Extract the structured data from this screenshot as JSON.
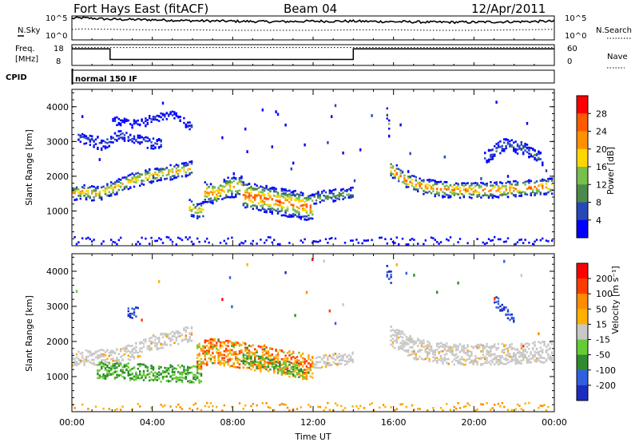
{
  "header": {
    "station": "Fort Hays East (fitACF)",
    "beam": "Beam 04",
    "date": "12/Apr/2011"
  },
  "top_panels": {
    "nsky_label": "N.Sky",
    "nsky_ticks": [
      "10^5",
      "10^0"
    ],
    "nsearch_label": "N.Search",
    "nsearch_ticks": [
      "10^5",
      "10^0"
    ],
    "freq_label": "Freq.",
    "freq_unit": "[MHz]",
    "freq_ticks": [
      "18",
      "8"
    ],
    "nave_label": "Nave",
    "nave_ticks": [
      "60",
      "0"
    ],
    "cpid_label": "CPID",
    "cpid_value": "normal 150 IF"
  },
  "chart_data": [
    {
      "type": "line",
      "panel": "noise",
      "xlim": [
        0,
        24
      ],
      "series": [
        {
          "name": "N.Sky",
          "style": "solid",
          "x": [
            0,
            0.5,
            2,
            4,
            6,
            8,
            10,
            12,
            14,
            16,
            18,
            20,
            22,
            24
          ],
          "values": [
            4.5,
            4.6,
            4.3,
            4.2,
            4.0,
            3.9,
            3.8,
            3.9,
            3.9,
            3.8,
            3.7,
            3.7,
            3.8,
            3.9
          ]
        },
        {
          "name": "N.Search",
          "style": "dotted",
          "x": [
            0,
            0.5,
            2,
            4,
            6,
            8,
            10,
            12,
            14,
            16,
            18,
            20,
            22,
            24
          ],
          "values": [
            2.2,
            2.3,
            2.2,
            2.1,
            2.1,
            2.0,
            2.0,
            2.0,
            2.1,
            2.1,
            2.0,
            2.0,
            2.1,
            2.2
          ]
        }
      ]
    },
    {
      "type": "line",
      "panel": "frequency",
      "xlim": [
        0,
        24
      ],
      "series": [
        {
          "name": "Freq.",
          "style": "solid",
          "x": [
            0,
            1.9,
            1.9,
            14.0,
            14.0,
            24
          ],
          "values": [
            16.5,
            16.5,
            10.5,
            10.5,
            16.5,
            16.5
          ]
        },
        {
          "name": "Nave",
          "style": "dotted",
          "x": [
            0,
            24
          ],
          "values": [
            56,
            56
          ]
        }
      ]
    },
    {
      "type": "heatmap",
      "panel": "power",
      "xlabel": "Time UT",
      "ylabel": "Slant Range [km]",
      "xlim": [
        0,
        24
      ],
      "ylim": [
        0,
        4500
      ],
      "x_ticks": [
        "00:00",
        "04:00",
        "08:00",
        "12:00",
        "16:00",
        "20:00",
        "00:00"
      ],
      "y_ticks": [
        1000,
        2000,
        3000,
        4000
      ],
      "colorbar": {
        "label": "Power [dB]",
        "ticks": [
          "4",
          "8",
          "12",
          "16",
          "20",
          "24",
          "28"
        ],
        "colors": [
          "#0000ff",
          "#2848b8",
          "#4c8a4c",
          "#77c04b",
          "#ffd700",
          "#ff9000",
          "#ff5a00",
          "#ff0000"
        ]
      },
      "bands": [
        {
          "t": [
            0.0,
            0.6,
            1.2,
            2.0,
            3.0,
            4.0,
            5.0,
            6.0
          ],
          "r": [
            1500,
            1560,
            1480,
            1640,
            1880,
            2020,
            2120,
            2220
          ],
          "w": 210,
          "core": 21
        },
        {
          "t": [
            0.3,
            1.5,
            2.5,
            3.5,
            4.5
          ],
          "r": [
            3150,
            2900,
            3200,
            3000,
            2900
          ],
          "w": 160,
          "core": 6
        },
        {
          "t": [
            2.0,
            3.0,
            4.0,
            5.0,
            6.0
          ],
          "r": [
            3620,
            3500,
            3650,
            3800,
            3400
          ],
          "w": 120,
          "core": 4
        },
        {
          "t": [
            5.8,
            6.2,
            6.6
          ],
          "r": [
            1120,
            1000,
            1050
          ],
          "w": 230,
          "core": 19
        },
        {
          "t": [
            6.6,
            7.2,
            7.8,
            8.5
          ],
          "r": [
            1550,
            1500,
            1680,
            1720
          ],
          "w": 300,
          "core": 23
        },
        {
          "t": [
            8.5,
            9.5,
            10.5,
            11.5,
            12.0
          ],
          "r": [
            1480,
            1350,
            1250,
            1150,
            1100
          ],
          "w": 390,
          "core": 27
        },
        {
          "t": [
            12.0,
            13.0,
            14.0
          ],
          "r": [
            1350,
            1450,
            1500
          ],
          "w": 180,
          "core": 12
        },
        {
          "t": [
            15.8,
            16.6,
            17.5,
            18.5,
            19.5,
            20.5,
            21.5,
            22.5,
            23.5,
            24.0
          ],
          "r": [
            2250,
            1880,
            1700,
            1620,
            1600,
            1600,
            1610,
            1650,
            1700,
            1720
          ],
          "w": 230,
          "core": 25
        },
        {
          "t": [
            20.5,
            21.5,
            22.5,
            23.5
          ],
          "r": [
            2500,
            2900,
            2800,
            2450
          ],
          "w": 180,
          "core": 8
        },
        {
          "t": [
            15.6,
            15.7,
            15.8
          ],
          "r": [
            4150,
            3750,
            3450
          ],
          "w": 150,
          "core": 14
        }
      ]
    },
    {
      "type": "heatmap",
      "panel": "velocity",
      "xlabel": "Time UT",
      "ylabel": "Slant Range [km]",
      "xlim": [
        0,
        24
      ],
      "ylim": [
        0,
        4500
      ],
      "x_ticks": [
        "00:00",
        "04:00",
        "08:00",
        "12:00",
        "16:00",
        "20:00",
        "00:00"
      ],
      "y_ticks": [
        1000,
        2000,
        3000,
        4000
      ],
      "colorbar": {
        "label": "Velocity [m s⁻¹]",
        "ticks": [
          "200",
          "100",
          "50",
          "15",
          "-15",
          "-50",
          "-100",
          "-200"
        ],
        "colors": [
          "#1c2cc0",
          "#3060e0",
          "#2e8b2e",
          "#66cc33",
          "#c8c8c8",
          "#ffb000",
          "#ff8c00",
          "#ff3c00",
          "#ff0000"
        ]
      },
      "bands": [
        {
          "t": [
            0.0,
            1.0,
            2.0,
            3.0,
            4.0,
            5.0,
            6.0
          ],
          "r": [
            1500,
            1540,
            1550,
            1700,
            1950,
            2100,
            2230
          ],
          "w": 220,
          "class": "gray"
        },
        {
          "t": [
            1.2,
            2.5,
            4.0,
            5.5,
            6.5
          ],
          "r": [
            1180,
            1150,
            1100,
            1080,
            1050
          ],
          "w": 240,
          "class": "green"
        },
        {
          "t": [
            6.2,
            7.0,
            8.0,
            9.0,
            10.0,
            11.0,
            12.0
          ],
          "r": [
            1550,
            1720,
            1650,
            1550,
            1450,
            1350,
            1250
          ],
          "w": 370,
          "class": "orange"
        },
        {
          "t": [
            8.5,
            9.5,
            10.5,
            11.5
          ],
          "r": [
            1500,
            1400,
            1250,
            1150
          ],
          "w": 160,
          "class": "green"
        },
        {
          "t": [
            12.0,
            13.0,
            14.0
          ],
          "r": [
            1380,
            1480,
            1520
          ],
          "w": 170,
          "class": "gray"
        },
        {
          "t": [
            15.8,
            17.0,
            18.5,
            20.0,
            21.5,
            23.0,
            24.0
          ],
          "r": [
            2200,
            1800,
            1650,
            1620,
            1640,
            1680,
            1720
          ],
          "w": 300,
          "class": "gray"
        },
        {
          "t": [
            2.8,
            3.3
          ],
          "r": [
            2800,
            2820
          ],
          "w": 160,
          "class": "blue"
        },
        {
          "t": [
            15.6,
            15.9
          ],
          "r": [
            4100,
            3800
          ],
          "w": 170,
          "class": "blue"
        },
        {
          "t": [
            21.0,
            21.5,
            22.0
          ],
          "r": [
            3200,
            2900,
            2600
          ],
          "w": 160,
          "class": "blue"
        }
      ]
    }
  ]
}
